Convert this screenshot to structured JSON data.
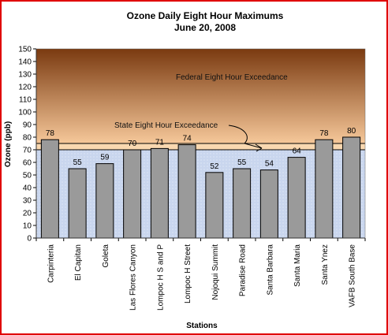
{
  "chart_data": {
    "type": "bar",
    "title": "Ozone Daily Eight Hour Maximums",
    "subtitle": "June 20, 2008",
    "xlabel": "Stations",
    "ylabel": "Ozone (ppb)",
    "ylim": [
      0,
      150
    ],
    "yticks": [
      0,
      10,
      20,
      30,
      40,
      50,
      60,
      70,
      80,
      90,
      100,
      110,
      120,
      130,
      140,
      150
    ],
    "categories": [
      "Carpinteria",
      "El Capitan",
      "Goleta",
      "Las Flores Canyon",
      "Lompoc H S and P",
      "Lompoc H Street",
      "Nojoqui Summit",
      "Paradise Road",
      "Santa Barbara",
      "Santa Maria",
      "Santa Ynez",
      "VAFB South Base"
    ],
    "values": [
      78,
      55,
      59,
      70,
      71,
      74,
      52,
      55,
      54,
      64,
      78,
      80
    ],
    "thresholds": {
      "state": {
        "label": "State Eight Hour Exceedance",
        "value": 70
      },
      "federal": {
        "label": "Federal Eight Hour Exceedance",
        "value": 75
      }
    },
    "grid": false,
    "legend": "none",
    "colors": {
      "bar": "#9a9a9a",
      "below_state": "#c9d6ee",
      "band_state_federal": "#f9d8b0",
      "above_federal_top": "#7a3a10",
      "above_federal_bottom": "#f6c89a",
      "frame": "#e00000"
    }
  }
}
